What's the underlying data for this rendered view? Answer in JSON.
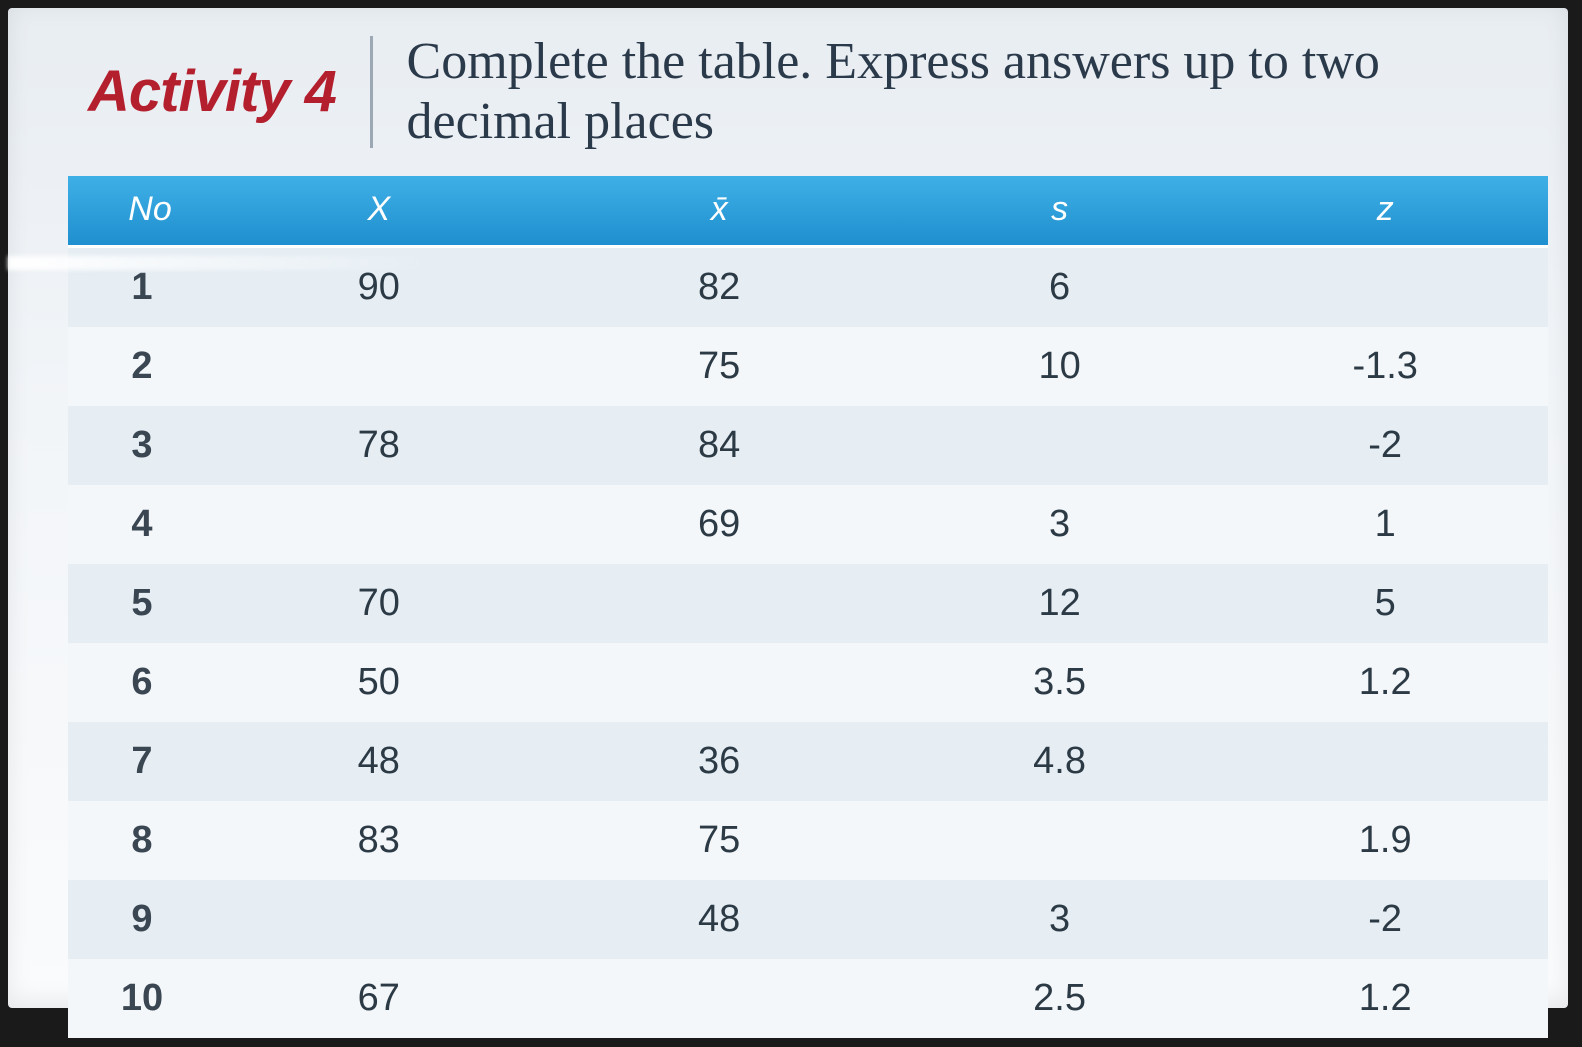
{
  "header": {
    "activity_label": "Activity 4",
    "instruction": "Complete the table. Express answers up to two decimal places"
  },
  "table": {
    "type": "table",
    "header_bg": "#2a9bd6",
    "header_text_color": "#ffffff",
    "row_odd_bg": "#e6eef4",
    "row_even_bg": "#f3f7fa",
    "cell_text_color": "#2c3a45",
    "font_size_header": 34,
    "font_size_cell": 38,
    "columns": [
      {
        "key": "no",
        "label": "No",
        "width_pct": 10,
        "align": "center"
      },
      {
        "key": "x",
        "label": "X",
        "width_pct": 22,
        "align": "center"
      },
      {
        "key": "xbar",
        "label": "x̄",
        "width_pct": 24,
        "align": "center"
      },
      {
        "key": "s",
        "label": "s",
        "width_pct": 22,
        "align": "center"
      },
      {
        "key": "z",
        "label": "z",
        "width_pct": 22,
        "align": "center"
      }
    ],
    "rows": [
      {
        "no": "1",
        "x": "90",
        "xbar": "82",
        "s": "6",
        "z": ""
      },
      {
        "no": "2",
        "x": "",
        "xbar": "75",
        "s": "10",
        "z": "-1.3"
      },
      {
        "no": "3",
        "x": "78",
        "xbar": "84",
        "s": "",
        "z": "-2"
      },
      {
        "no": "4",
        "x": "",
        "xbar": "69",
        "s": "3",
        "z": "1"
      },
      {
        "no": "5",
        "x": "70",
        "xbar": "",
        "s": "12",
        "z": "5"
      },
      {
        "no": "6",
        "x": "50",
        "xbar": "",
        "s": "3.5",
        "z": "1.2"
      },
      {
        "no": "7",
        "x": "48",
        "xbar": "36",
        "s": "4.8",
        "z": ""
      },
      {
        "no": "8",
        "x": "83",
        "xbar": "75",
        "s": "",
        "z": "1.9"
      },
      {
        "no": "9",
        "x": "",
        "xbar": "48",
        "s": "3",
        "z": "-2"
      },
      {
        "no": "10",
        "x": "67",
        "xbar": "",
        "s": "2.5",
        "z": "1.2"
      }
    ]
  },
  "colors": {
    "activity_title": "#b41f2e",
    "instruction_text": "#2b3a4a",
    "slide_bg_top": "#e8edf2",
    "slide_bg_bottom": "#fafbfc",
    "page_bg": "#1a1a1a",
    "divider": "#7a8a99"
  }
}
